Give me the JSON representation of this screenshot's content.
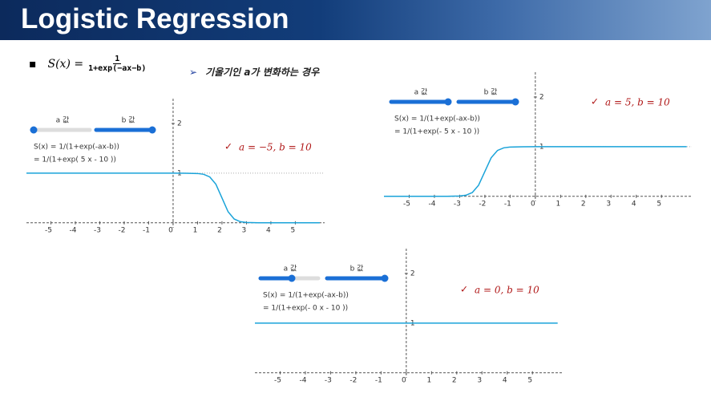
{
  "header": {
    "title": "Logistic Regression",
    "formula": {
      "lhs": "S(x) =",
      "numerator": "1",
      "denominator": "1+exp(−ax−b)"
    },
    "subtitle": "기울기인 a가 변화하는 경우"
  },
  "chart_data": [
    {
      "type": "line",
      "annotation": "a = −5, b = 10",
      "slider_labels": [
        "a 값",
        "b 값"
      ],
      "formula_lines": [
        "S(x) = 1/(1+exp(-ax-b))",
        "= 1/(1+exp( 5 x - 10 ))"
      ],
      "x": [
        -6,
        -5,
        -4,
        -3,
        -2,
        -1,
        0,
        0.5,
        1,
        1.25,
        1.5,
        1.75,
        2,
        2.25,
        2.5,
        2.75,
        3,
        3.5,
        4,
        5,
        6
      ],
      "values": [
        1,
        1,
        1,
        1,
        1,
        1,
        1,
        0.999,
        0.993,
        0.977,
        0.924,
        0.777,
        0.5,
        0.223,
        0.076,
        0.023,
        0.007,
        0.001,
        0,
        0,
        0
      ],
      "color": "#1aa3d9",
      "hline": 1,
      "xlim": [
        -6,
        6.2
      ],
      "ylim": [
        -0.1,
        2.5
      ],
      "xticks": [
        -5,
        -4,
        -3,
        -2,
        -1,
        0,
        1,
        2,
        3,
        4,
        5
      ],
      "yticks": [
        1,
        2
      ]
    },
    {
      "type": "line",
      "annotation": "a = 5, b = 10",
      "slider_labels": [
        "a 값",
        "b 값"
      ],
      "formula_lines": [
        "S(x) = 1/(1+exp(-ax-b))",
        "= 1/(1+exp(- 5 x - 10 ))"
      ],
      "x": [
        -6,
        -5,
        -4,
        -3.5,
        -3,
        -2.75,
        -2.5,
        -2.25,
        -2,
        -1.75,
        -1.5,
        -1.25,
        -1,
        -0.5,
        0,
        1,
        2,
        3,
        4,
        5,
        6
      ],
      "values": [
        0,
        0,
        0,
        0.001,
        0.007,
        0.023,
        0.076,
        0.223,
        0.5,
        0.777,
        0.924,
        0.977,
        0.993,
        0.999,
        1,
        1,
        1,
        1,
        1,
        1,
        1
      ],
      "color": "#1aa3d9",
      "hline": 1,
      "xlim": [
        -6,
        6.2
      ],
      "ylim": [
        -0.1,
        2.5
      ],
      "xticks": [
        -5,
        -4,
        -3,
        -2,
        -1,
        0,
        1,
        2,
        3,
        4,
        5
      ],
      "yticks": [
        1,
        2
      ]
    },
    {
      "type": "line",
      "annotation": "a = 0, b = 10",
      "slider_labels": [
        "a 값",
        "b 값"
      ],
      "formula_lines": [
        "S(x) = 1/(1+exp(-ax-b))",
        "= 1/(1+exp(- 0 x - 10 ))"
      ],
      "x": [
        -6,
        6
      ],
      "values": [
        1,
        1
      ],
      "color": "#1aa3d9",
      "xlim": [
        -6,
        6.2
      ],
      "ylim": [
        -0.1,
        2.5
      ],
      "xticks": [
        -5,
        -4,
        -3,
        -2,
        -1,
        0,
        1,
        2,
        3,
        4,
        5
      ],
      "yticks": [
        1,
        2
      ]
    }
  ]
}
